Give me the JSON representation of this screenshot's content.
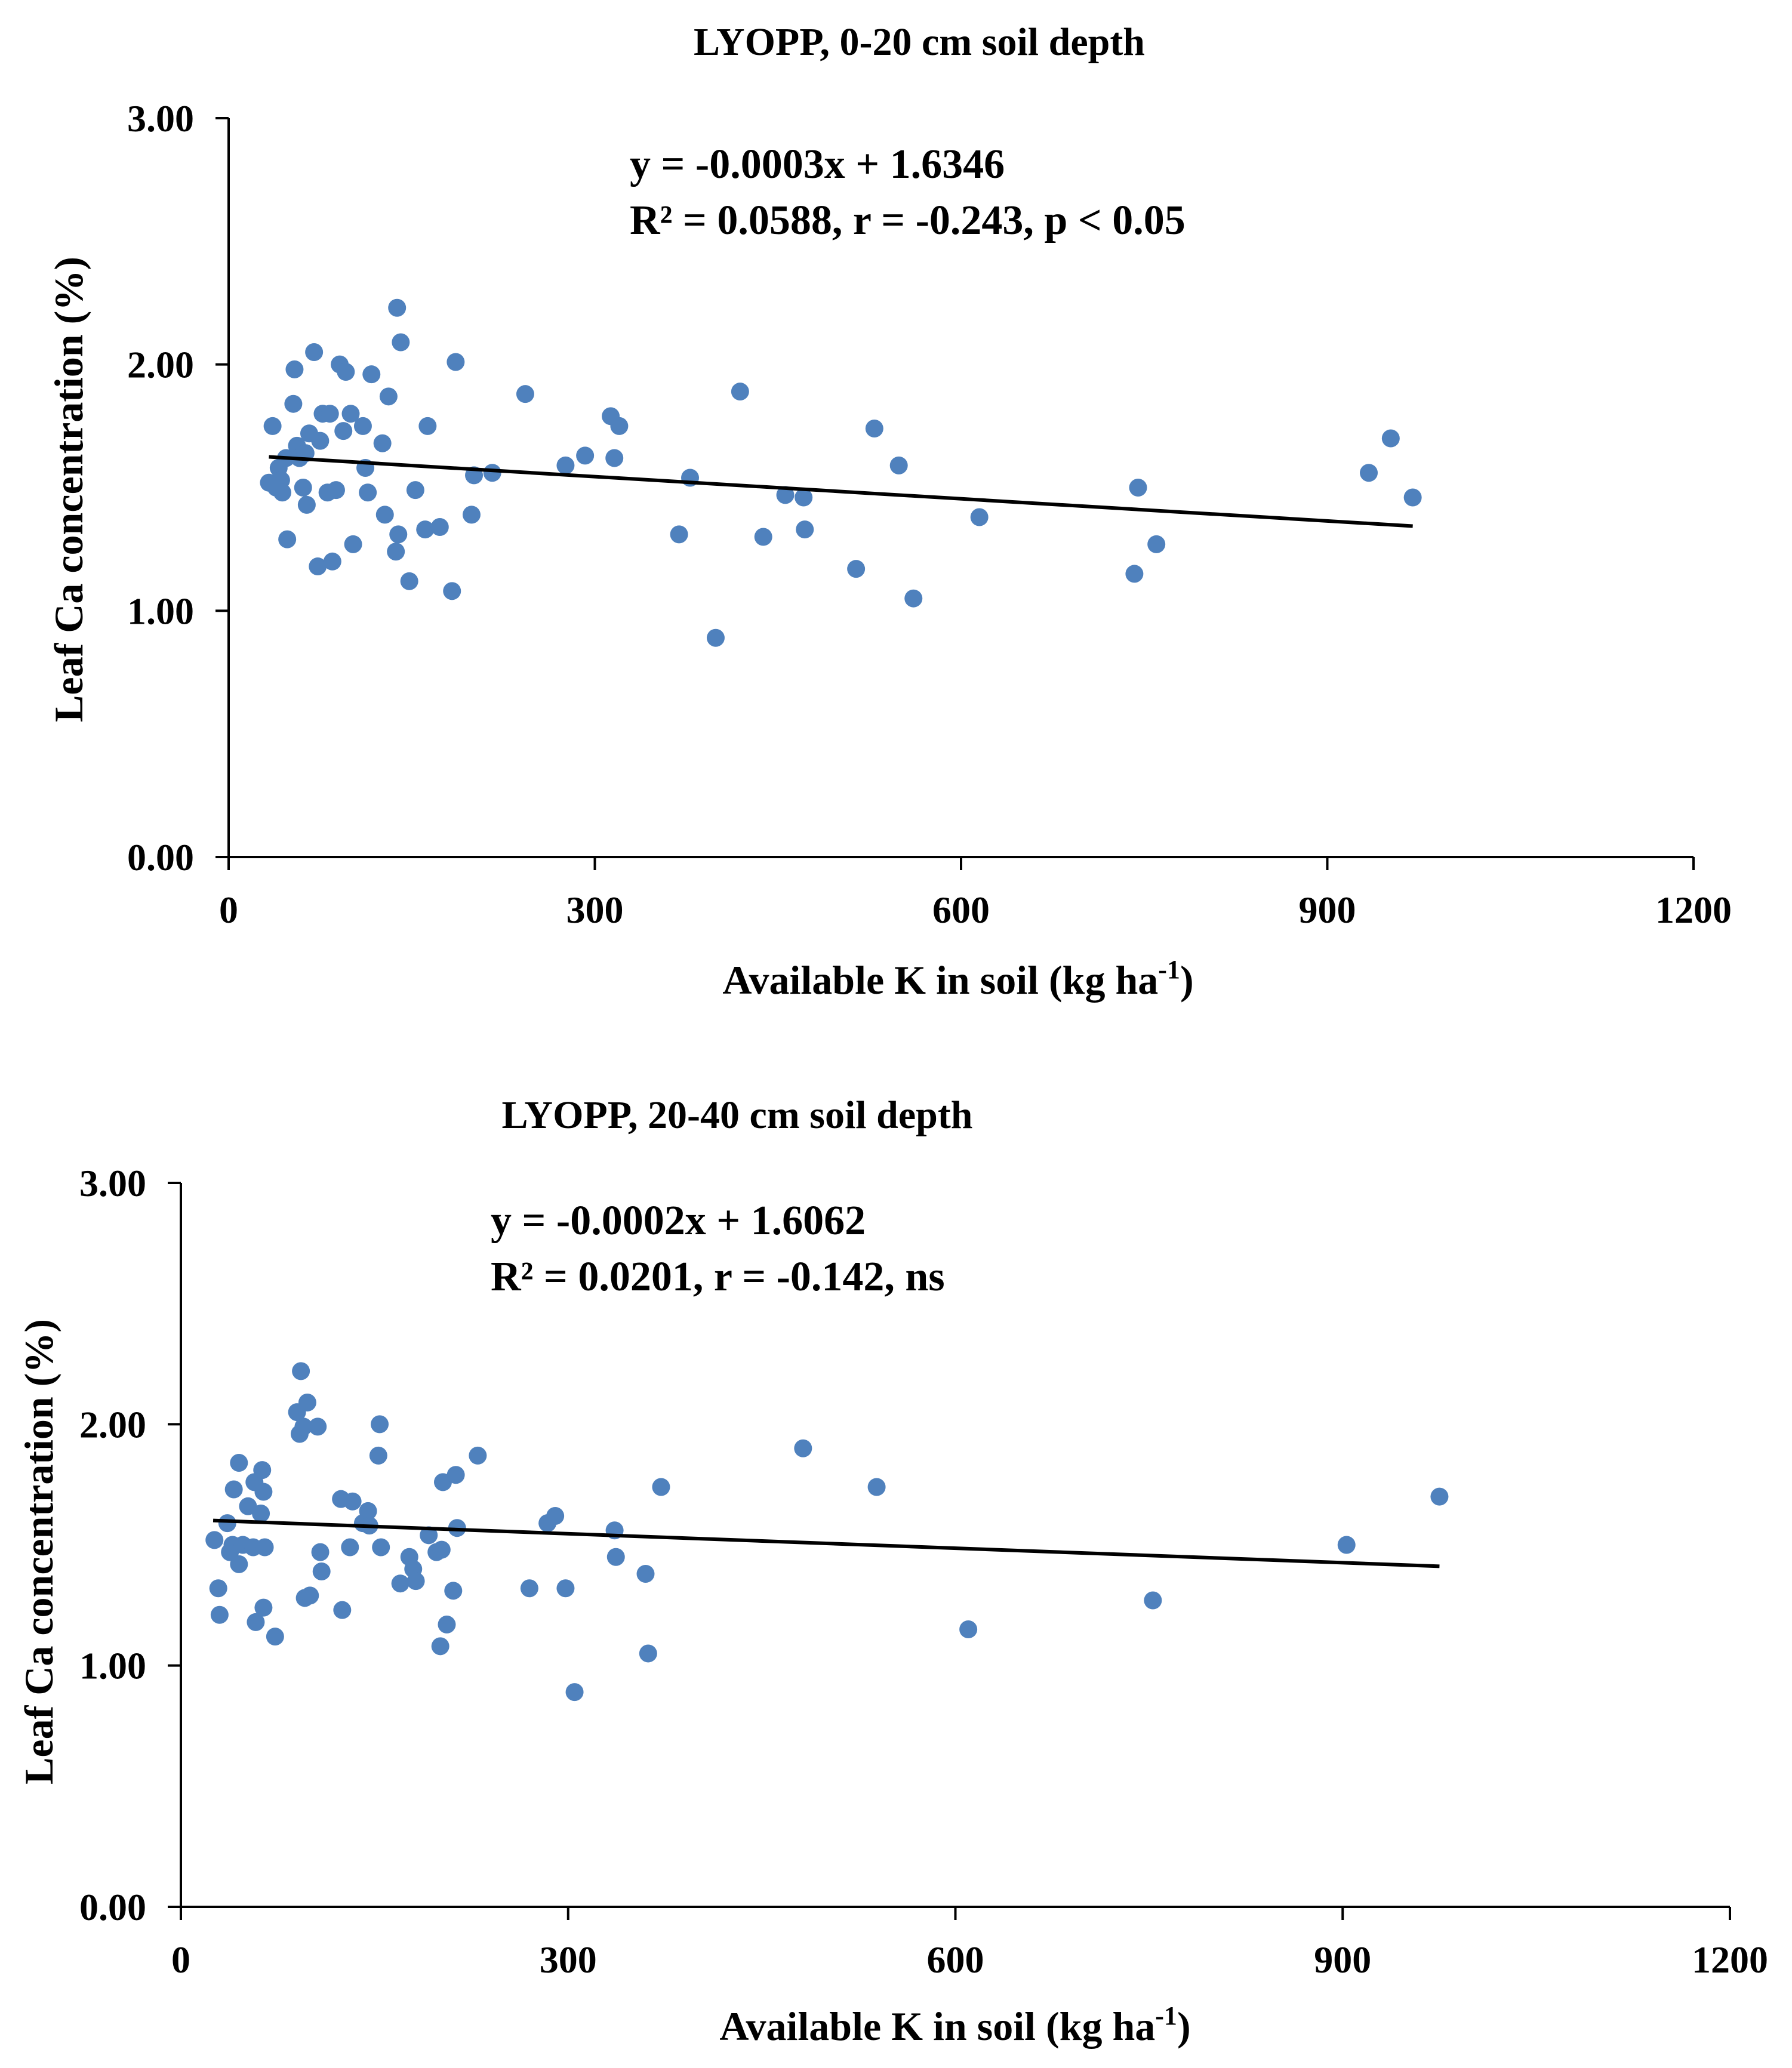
{
  "chart_data": [
    {
      "type": "scatter",
      "title": "LYOPP, 0-20 cm soil depth",
      "xlabel": "Available K in soil (kg ha-1)",
      "xlabel_main": "Available K in soil (kg ha",
      "xlabel_sup": "-1",
      "xlabel_close": ")",
      "ylabel": "Leaf Ca concentration (%)",
      "xlim": [
        0,
        1200
      ],
      "ylim": [
        0,
        3
      ],
      "xticks": [
        0,
        300,
        600,
        900,
        1200
      ],
      "yticks": [
        0,
        1,
        2,
        3
      ],
      "xtick_labels": [
        "0",
        "300",
        "600",
        "900",
        "1200"
      ],
      "ytick_labels": [
        "0.00",
        "1.00",
        "2.00",
        "3.00"
      ],
      "equation": "y = -0.0003x + 1.6346",
      "stats": "R² = 0.0588, r = -0.243, p < 0.05",
      "marker_color": "#4F81BD",
      "trendline": {
        "slope": -0.0003,
        "intercept": 1.6346,
        "x_range": [
          33,
          970
        ],
        "color": "#000000"
      },
      "points": [
        [
          33,
          1.52
        ],
        [
          36,
          1.75
        ],
        [
          39,
          1.5
        ],
        [
          41,
          1.58
        ],
        [
          43,
          1.53
        ],
        [
          44,
          1.48
        ],
        [
          47,
          1.62
        ],
        [
          48,
          1.29
        ],
        [
          53,
          1.84
        ],
        [
          54,
          1.98
        ],
        [
          56,
          1.67
        ],
        [
          58,
          1.62
        ],
        [
          61,
          1.5
        ],
        [
          63,
          1.64
        ],
        [
          64,
          1.43
        ],
        [
          66,
          1.72
        ],
        [
          70,
          2.05
        ],
        [
          73,
          1.18
        ],
        [
          75,
          1.69
        ],
        [
          77,
          1.8
        ],
        [
          81,
          1.48
        ],
        [
          83,
          1.8
        ],
        [
          85,
          1.2
        ],
        [
          88,
          1.49
        ],
        [
          91,
          2.0
        ],
        [
          94,
          1.73
        ],
        [
          96,
          1.97
        ],
        [
          100,
          1.8
        ],
        [
          102,
          1.27
        ],
        [
          110,
          1.75
        ],
        [
          112,
          1.58
        ],
        [
          114,
          1.48
        ],
        [
          117,
          1.96
        ],
        [
          126,
          1.68
        ],
        [
          128,
          1.39
        ],
        [
          131,
          1.87
        ],
        [
          137,
          1.24
        ],
        [
          138,
          2.23
        ],
        [
          139,
          1.31
        ],
        [
          141,
          2.09
        ],
        [
          148,
          1.12
        ],
        [
          153,
          1.49
        ],
        [
          161,
          1.33
        ],
        [
          163,
          1.75
        ],
        [
          173,
          1.34
        ],
        [
          183,
          1.08
        ],
        [
          186,
          2.01
        ],
        [
          199,
          1.39
        ],
        [
          201,
          1.55
        ],
        [
          216,
          1.56
        ],
        [
          243,
          1.88
        ],
        [
          276,
          1.59
        ],
        [
          292,
          1.63
        ],
        [
          313,
          1.79
        ],
        [
          316,
          1.62
        ],
        [
          320,
          1.75
        ],
        [
          369,
          1.31
        ],
        [
          378,
          1.54
        ],
        [
          399,
          0.89
        ],
        [
          419,
          1.89
        ],
        [
          438,
          1.3
        ],
        [
          456,
          1.47
        ],
        [
          471,
          1.46
        ],
        [
          472,
          1.33
        ],
        [
          514,
          1.17
        ],
        [
          529,
          1.74
        ],
        [
          549,
          1.59
        ],
        [
          561,
          1.05
        ],
        [
          615,
          1.38
        ],
        [
          742,
          1.15
        ],
        [
          745,
          1.5
        ],
        [
          760,
          1.27
        ],
        [
          934,
          1.56
        ],
        [
          952,
          1.7
        ],
        [
          970,
          1.46
        ]
      ]
    },
    {
      "type": "scatter",
      "title": "LYOPP, 20-40 cm soil depth",
      "xlabel": "Available K in soil (kg ha-1)",
      "xlabel_main": "Available K in soil (kg ha",
      "xlabel_sup": "-1",
      "xlabel_close": ")",
      "ylabel": "Leaf Ca concentration (%)",
      "xlim": [
        0,
        1200
      ],
      "ylim": [
        0,
        3
      ],
      "xticks": [
        0,
        300,
        600,
        900,
        1200
      ],
      "yticks": [
        0,
        1,
        2,
        3
      ],
      "xtick_labels": [
        "0",
        "300",
        "600",
        "900",
        "1200"
      ],
      "ytick_labels": [
        "0.00",
        "1.00",
        "2.00",
        "3.00"
      ],
      "equation": "y = -0.0002x + 1.6062",
      "stats": "R² = 0.0201, r = -0.142, ns",
      "marker_color": "#4F81BD",
      "trendline": {
        "slope": -0.0002,
        "intercept": 1.6062,
        "x_range": [
          25,
          975
        ],
        "color": "#000000"
      },
      "points": [
        [
          26,
          1.52
        ],
        [
          29,
          1.32
        ],
        [
          30,
          1.21
        ],
        [
          36,
          1.59
        ],
        [
          38,
          1.47
        ],
        [
          40,
          1.5
        ],
        [
          41,
          1.73
        ],
        [
          45,
          1.84
        ],
        [
          45,
          1.42
        ],
        [
          48,
          1.5
        ],
        [
          52,
          1.66
        ],
        [
          56,
          1.49
        ],
        [
          57,
          1.76
        ],
        [
          58,
          1.18
        ],
        [
          62,
          1.63
        ],
        [
          63,
          1.81
        ],
        [
          64,
          1.72
        ],
        [
          64,
          1.24
        ],
        [
          65,
          1.49
        ],
        [
          73,
          1.12
        ],
        [
          90,
          2.05
        ],
        [
          92,
          1.96
        ],
        [
          93,
          2.22
        ],
        [
          95,
          1.99
        ],
        [
          96,
          1.28
        ],
        [
          98,
          2.09
        ],
        [
          100,
          1.29
        ],
        [
          106,
          1.99
        ],
        [
          108,
          1.47
        ],
        [
          109,
          1.39
        ],
        [
          124,
          1.69
        ],
        [
          125,
          1.23
        ],
        [
          131,
          1.49
        ],
        [
          133,
          1.68
        ],
        [
          141,
          1.59
        ],
        [
          145,
          1.64
        ],
        [
          146,
          1.58
        ],
        [
          153,
          1.87
        ],
        [
          154,
          2.0
        ],
        [
          155,
          1.49
        ],
        [
          170,
          1.34
        ],
        [
          177,
          1.45
        ],
        [
          180,
          1.4
        ],
        [
          182,
          1.35
        ],
        [
          192,
          1.54
        ],
        [
          198,
          1.47
        ],
        [
          201,
          1.08
        ],
        [
          202,
          1.48
        ],
        [
          203,
          1.76
        ],
        [
          206,
          1.17
        ],
        [
          211,
          1.31
        ],
        [
          213,
          1.79
        ],
        [
          214,
          1.57
        ],
        [
          230,
          1.87
        ],
        [
          270,
          1.32
        ],
        [
          284,
          1.59
        ],
        [
          290,
          1.62
        ],
        [
          298,
          1.32
        ],
        [
          305,
          0.89
        ],
        [
          336,
          1.56
        ],
        [
          337,
          1.45
        ],
        [
          360,
          1.38
        ],
        [
          362,
          1.05
        ],
        [
          372,
          1.74
        ],
        [
          482,
          1.9
        ],
        [
          539,
          1.74
        ],
        [
          610,
          1.15
        ],
        [
          753,
          1.27
        ],
        [
          903,
          1.5
        ],
        [
          975,
          1.7
        ]
      ]
    }
  ]
}
